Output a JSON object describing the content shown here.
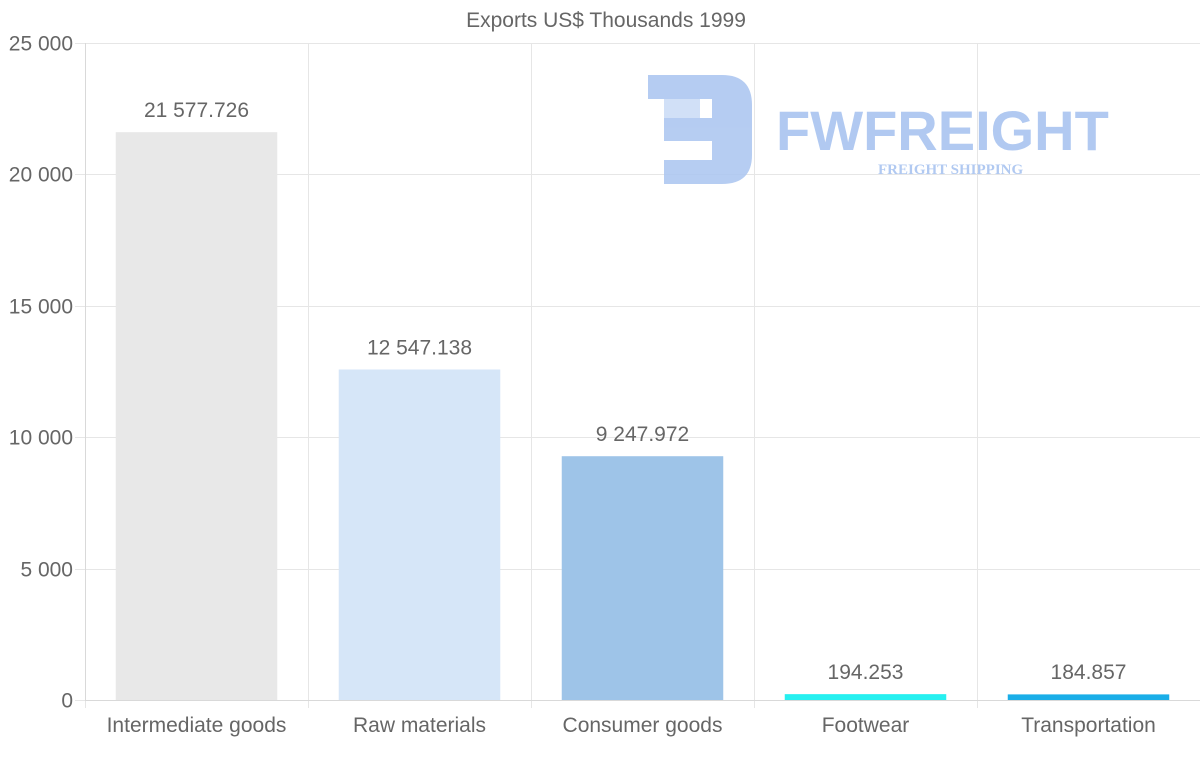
{
  "chart_data": {
    "type": "bar",
    "title": "Exports US$ Thousands 1999",
    "categories": [
      "Intermediate goods",
      "Raw materials",
      "Consumer goods",
      "Footwear",
      "Transportation"
    ],
    "values": [
      21577.726,
      12547.138,
      9247.972,
      194.253,
      184.857
    ],
    "value_labels": [
      "21 577.726",
      "12 547.138",
      "9 247.972",
      "194.253",
      "184.857"
    ],
    "bar_colors": [
      "#e8e8e8",
      "#d6e6f8",
      "#9ec4e8",
      "#27f0f0",
      "#1aaee8"
    ],
    "ylim": [
      0,
      25000
    ],
    "yticks": [
      0,
      5000,
      10000,
      15000,
      20000,
      25000
    ],
    "ytick_labels": [
      "0",
      "5 000",
      "10 000",
      "15 000",
      "20 000",
      "25 000"
    ],
    "xlabel": "",
    "ylabel": "",
    "grid": true
  },
  "watermark": {
    "brand": "FWFREIGHT",
    "tagline": "FREIGHT SHIPPING"
  }
}
